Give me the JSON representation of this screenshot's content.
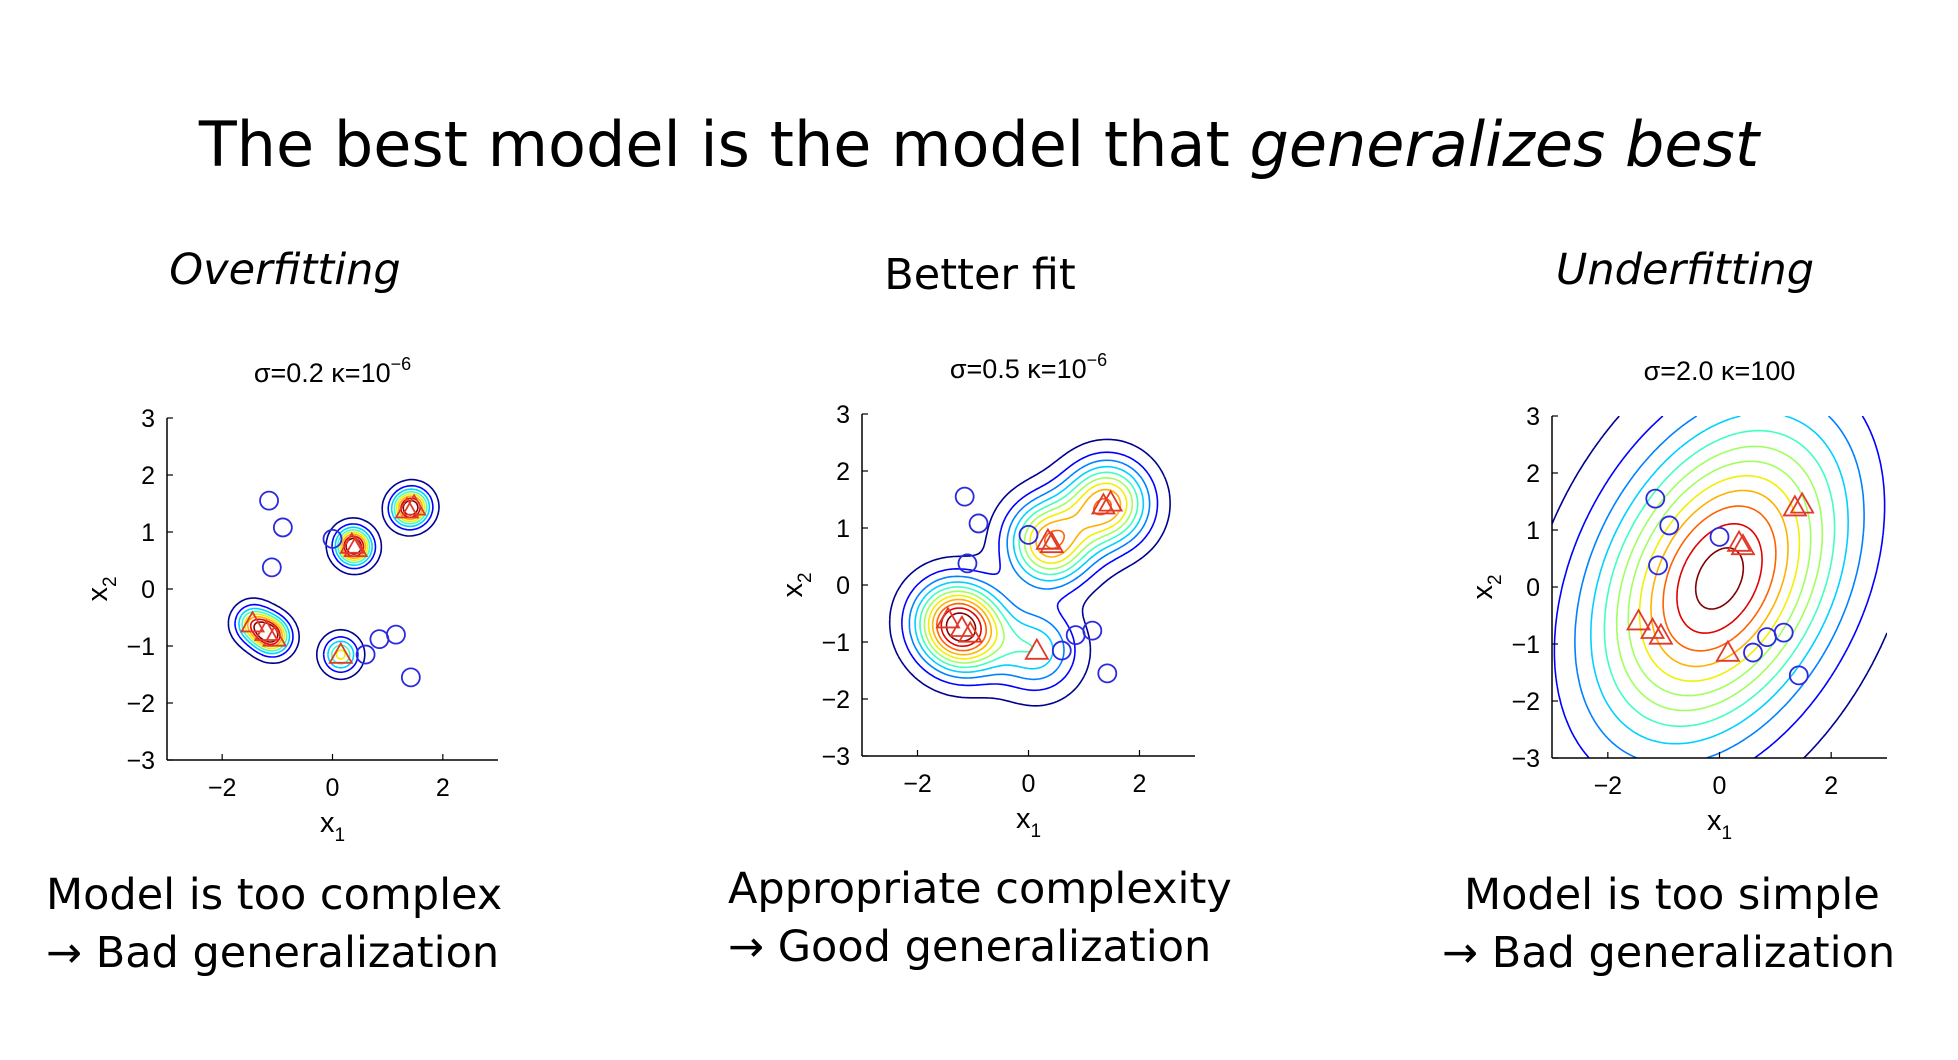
{
  "title": {
    "prefix": "The best model is the model that ",
    "emphasis": "generalizes best"
  },
  "panels": [
    {
      "heading": "Overfitting",
      "heading_italic": true,
      "caption_line1": "Model is too complex",
      "caption_line2": "→ Bad generalization"
    },
    {
      "heading": "Better fit",
      "heading_italic": false,
      "caption_line1": "Appropriate complexity",
      "caption_line2": "→ Good generalization"
    },
    {
      "heading": "Underfitting",
      "heading_italic": true,
      "caption_line1": "Model is too simple",
      "caption_line2": "→ Bad generalization"
    }
  ],
  "colors": {
    "circle_marker": "#2a2ae0",
    "triangle_marker": "#e03a2a",
    "contour_ramp": [
      "#00008f",
      "#0000ff",
      "#0080ff",
      "#00d0ff",
      "#40ffc0",
      "#a0ff60",
      "#f0f000",
      "#ffb000",
      "#ff6000",
      "#e00000",
      "#800000"
    ]
  },
  "chart_data": [
    {
      "type": "scatter",
      "title_main": "σ=0.2 κ=10",
      "title_sup": "−6",
      "xlabel": "x",
      "xlabel_sub": "1",
      "ylabel": "x",
      "ylabel_sub": "2",
      "xlim": [
        -3,
        3
      ],
      "ylim": [
        -3,
        3
      ],
      "xticks": [
        "−2",
        "0",
        "2"
      ],
      "xtick_values": [
        -2,
        0,
        2
      ],
      "yticks": [
        "3",
        "2",
        "1",
        "0",
        "−1",
        "−2",
        "−3"
      ],
      "ytick_values": [
        3,
        2,
        1,
        0,
        -1,
        -2,
        -3
      ],
      "contour_levels": 8,
      "series": [
        {
          "marker": "circle",
          "points": [
            [
              -1.15,
              1.55
            ],
            [
              -0.9,
              1.08
            ],
            [
              -1.1,
              0.38
            ],
            [
              0.0,
              0.88
            ],
            [
              0.6,
              -1.15
            ],
            [
              0.85,
              -0.88
            ],
            [
              1.15,
              -0.8
            ],
            [
              1.42,
              -1.55
            ]
          ]
        },
        {
          "marker": "triangle",
          "points": [
            [
              -1.45,
              -0.6
            ],
            [
              -1.2,
              -0.75
            ],
            [
              -1.05,
              -0.85
            ],
            [
              0.15,
              -1.15
            ],
            [
              0.35,
              0.78
            ],
            [
              0.42,
              0.72
            ],
            [
              1.35,
              1.4
            ],
            [
              1.48,
              1.45
            ]
          ]
        }
      ]
    },
    {
      "type": "scatter",
      "title_main": "σ=0.5 κ=10",
      "title_sup": "−6",
      "xlabel": "x",
      "xlabel_sub": "1",
      "ylabel": "x",
      "ylabel_sub": "2",
      "xlim": [
        -3,
        3
      ],
      "ylim": [
        -3,
        3
      ],
      "xticks": [
        "−2",
        "0",
        "2"
      ],
      "xtick_values": [
        -2,
        0,
        2
      ],
      "yticks": [
        "3",
        "2",
        "1",
        "0",
        "−1",
        "−2",
        "−3"
      ],
      "ytick_values": [
        3,
        2,
        1,
        0,
        -1,
        -2,
        -3
      ],
      "contour_levels": 11,
      "series": [
        {
          "marker": "circle",
          "points": [
            [
              -1.15,
              1.55
            ],
            [
              -0.9,
              1.08
            ],
            [
              -1.1,
              0.38
            ],
            [
              0.0,
              0.88
            ],
            [
              0.6,
              -1.15
            ],
            [
              0.85,
              -0.88
            ],
            [
              1.15,
              -0.8
            ],
            [
              1.42,
              -1.55
            ]
          ]
        },
        {
          "marker": "triangle",
          "points": [
            [
              -1.45,
              -0.6
            ],
            [
              -1.2,
              -0.75
            ],
            [
              -1.05,
              -0.85
            ],
            [
              0.15,
              -1.15
            ],
            [
              0.35,
              0.78
            ],
            [
              0.42,
              0.72
            ],
            [
              1.35,
              1.4
            ],
            [
              1.48,
              1.45
            ]
          ]
        }
      ]
    },
    {
      "type": "scatter",
      "title_main": "σ=2.0 κ=100",
      "title_sup": "",
      "xlabel": "x",
      "xlabel_sub": "1",
      "ylabel": "x",
      "ylabel_sub": "2",
      "xlim": [
        -3,
        3
      ],
      "ylim": [
        -3,
        3
      ],
      "xticks": [
        "−2",
        "0",
        "2"
      ],
      "xtick_values": [
        -2,
        0,
        2
      ],
      "yticks": [
        "3",
        "2",
        "1",
        "0",
        "−1",
        "−2",
        "−3"
      ],
      "ytick_values": [
        3,
        2,
        1,
        0,
        -1,
        -2,
        -3
      ],
      "contour_levels": 12,
      "series": [
        {
          "marker": "circle",
          "points": [
            [
              -1.15,
              1.55
            ],
            [
              -0.9,
              1.08
            ],
            [
              -1.1,
              0.38
            ],
            [
              0.0,
              0.88
            ],
            [
              0.6,
              -1.15
            ],
            [
              0.85,
              -0.88
            ],
            [
              1.15,
              -0.8
            ],
            [
              1.42,
              -1.55
            ]
          ]
        },
        {
          "marker": "triangle",
          "points": [
            [
              -1.45,
              -0.6
            ],
            [
              -1.2,
              -0.75
            ],
            [
              -1.05,
              -0.85
            ],
            [
              0.15,
              -1.15
            ],
            [
              0.35,
              0.78
            ],
            [
              0.42,
              0.72
            ],
            [
              1.35,
              1.4
            ],
            [
              1.48,
              1.45
            ]
          ]
        }
      ]
    }
  ]
}
